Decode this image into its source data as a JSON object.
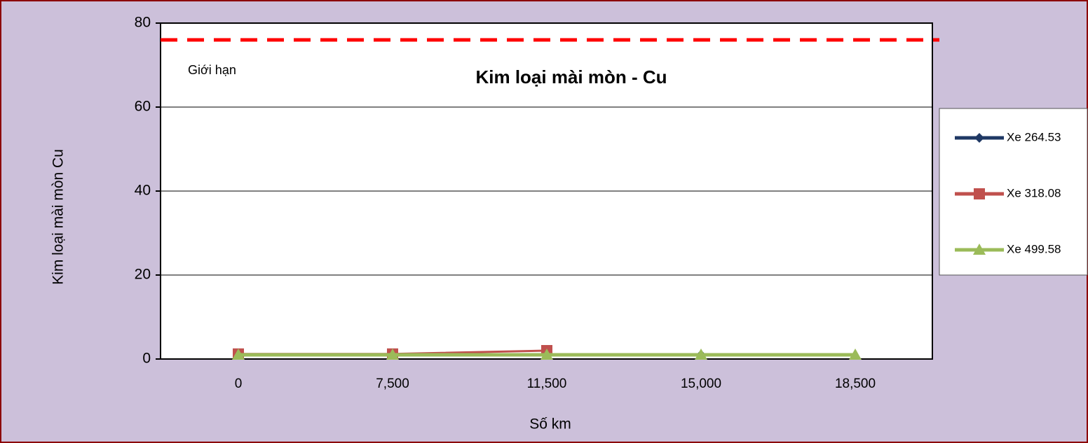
{
  "chart_data": {
    "type": "line",
    "title": "Kim loại mài mòn - Cu",
    "x_label": "Số km",
    "y_label": "Kim loại mài mòn Cu",
    "categories": [
      "0",
      "7,500",
      "11,500",
      "15,000",
      "18,500"
    ],
    "series": [
      {
        "name": "Xe 264.53",
        "color": "#1f3864",
        "marker": "diamond",
        "values": [
          1,
          1,
          1,
          1,
          null
        ]
      },
      {
        "name": "Xe 318.08",
        "color": "#c0504d",
        "marker": "square",
        "values": [
          1.2,
          1.2,
          2,
          null,
          null
        ]
      },
      {
        "name": "Xe 499.58",
        "color": "#9bbb59",
        "marker": "triangle",
        "values": [
          1,
          1,
          1,
          1,
          1
        ]
      }
    ],
    "limit": {
      "label": "Giới hạn",
      "value": 76,
      "color": "#ff0000"
    },
    "ylim": [
      0,
      80
    ],
    "yticks": [
      0,
      20,
      40,
      60,
      80
    ],
    "grid": true,
    "legend": "right"
  }
}
